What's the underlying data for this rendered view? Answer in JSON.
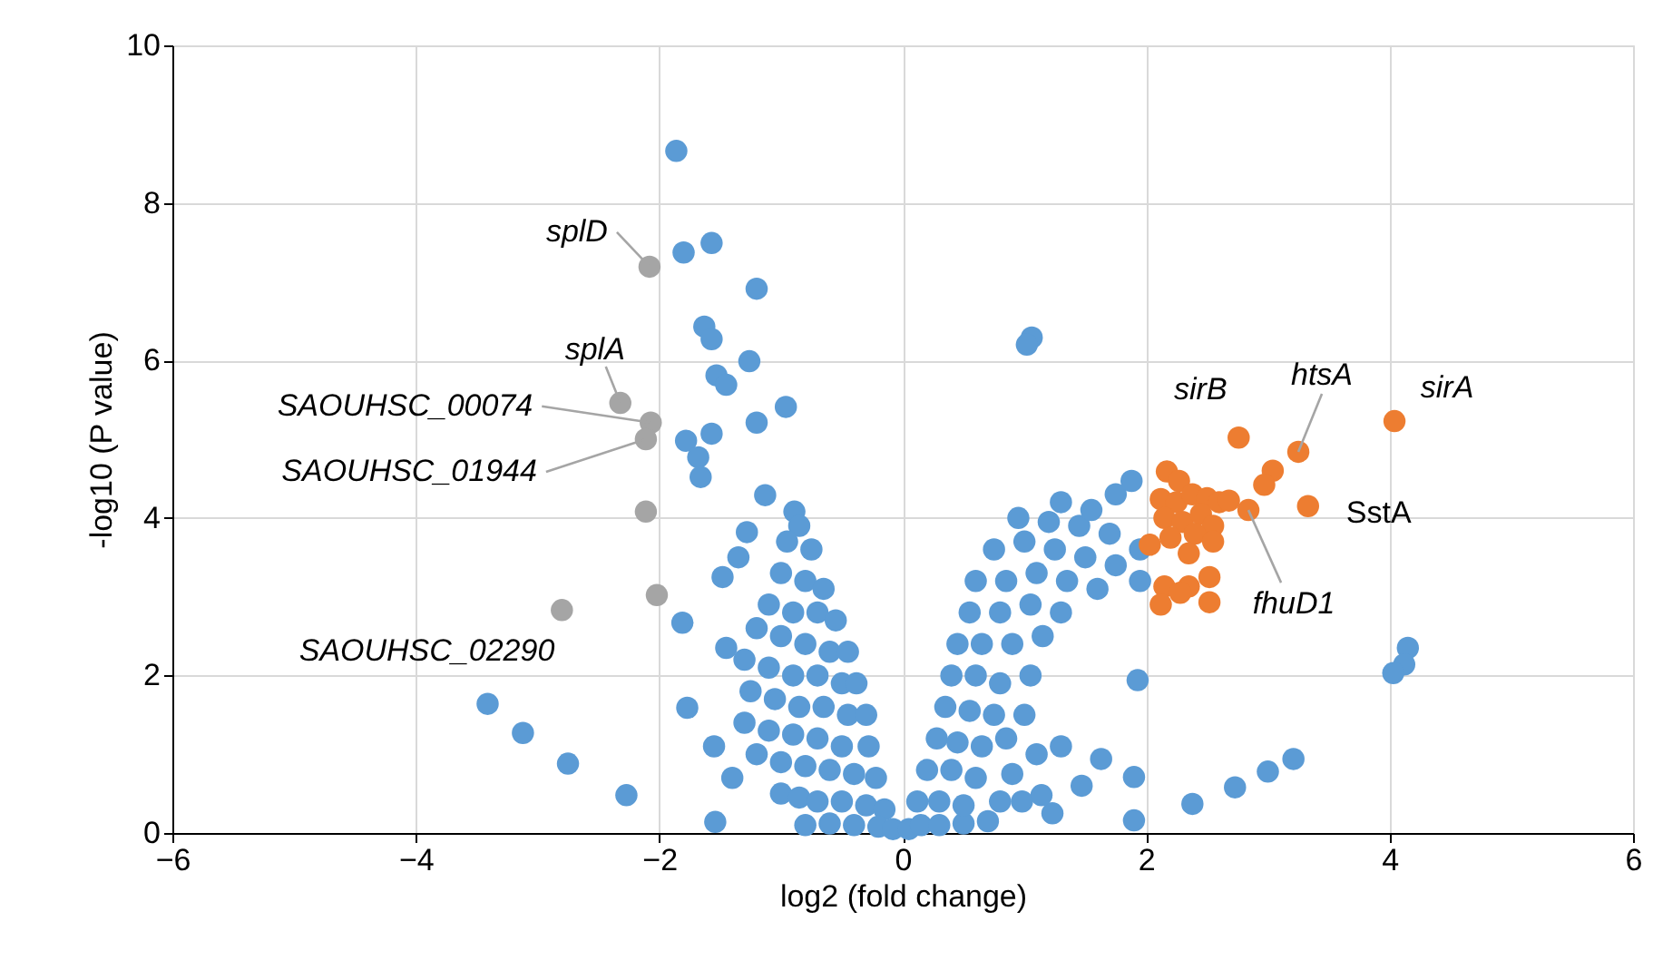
{
  "chart_data": {
    "type": "scatter",
    "xlabel": "log2 (fold change)",
    "ylabel": "-log10 (P value)",
    "xlim": [
      -6,
      6
    ],
    "xticks": [
      -6,
      -4,
      -2,
      0,
      2,
      4,
      6
    ],
    "ylim": [
      0,
      10
    ],
    "yticks": [
      0,
      2,
      4,
      6,
      8,
      10
    ],
    "grid": true,
    "marker": "circle",
    "series": [
      {
        "color": "#5b9bd5",
        "x": [
          -1.86,
          -1.8,
          -1.57,
          -1.2,
          -1.63,
          -1.57,
          -1.26,
          -1.53,
          -1.45,
          -0.96,
          -1.2,
          -1.57,
          -1.78,
          -1.68,
          -1.66,
          -1.13,
          -0.89,
          -1.28,
          -1.35,
          -1.48,
          -1.81,
          -1.45,
          -1.77,
          -3.41,
          -3.12,
          -2.75,
          -2.27,
          -1.54,
          -0.85,
          -0.95,
          -0.75,
          -1.0,
          -0.8,
          -0.65,
          -1.1,
          -0.9,
          -0.7,
          -0.55,
          -1.2,
          -1.0,
          -0.8,
          -0.6,
          -0.45,
          -1.3,
          -1.1,
          -0.9,
          -0.7,
          -0.5,
          -0.38,
          -1.25,
          -1.05,
          -0.85,
          -0.65,
          -0.45,
          -0.3,
          -1.3,
          -1.1,
          -0.9,
          -0.7,
          -0.5,
          -0.28,
          -1.2,
          -1.0,
          -0.8,
          -0.6,
          -0.4,
          -0.22,
          -1.0,
          -0.85,
          -0.7,
          -0.5,
          -0.3,
          -0.15,
          -0.8,
          -0.6,
          -0.4,
          -0.2,
          -0.08,
          -1.4,
          -1.55,
          0.05,
          0.15,
          0.3,
          0.5,
          0.7,
          0.12,
          0.3,
          0.5,
          0.8,
          0.2,
          0.4,
          0.6,
          0.9,
          0.28,
          0.45,
          0.65,
          0.85,
          0.35,
          0.55,
          0.75,
          1.0,
          0.4,
          0.6,
          0.8,
          1.05,
          0.45,
          0.65,
          0.9,
          1.15,
          0.55,
          0.8,
          1.05,
          1.3,
          0.6,
          0.85,
          1.1,
          1.35,
          1.6,
          0.75,
          1.0,
          1.25,
          1.5,
          1.75,
          0.95,
          1.2,
          1.45,
          1.7,
          1.95,
          1.3,
          1.55,
          1.75,
          1.88,
          1.95,
          1.06,
          1.02,
          4.15,
          4.12,
          4.03,
          3.21,
          3.0,
          2.73,
          2.38,
          1.9,
          1.9,
          1.93,
          1.47,
          1.63,
          1.23,
          1.14,
          0.98,
          1.1,
          1.3
        ],
        "values": [
          8.66,
          7.37,
          7.49,
          6.91,
          6.43,
          6.27,
          5.99,
          5.81,
          5.69,
          5.41,
          5.21,
          5.07,
          4.98,
          4.77,
          4.52,
          4.29,
          4.08,
          3.82,
          3.5,
          3.25,
          2.67,
          2.35,
          1.59,
          1.64,
          1.27,
          0.88,
          0.48,
          0.14,
          3.9,
          3.7,
          3.6,
          3.3,
          3.2,
          3.1,
          2.9,
          2.8,
          2.8,
          2.7,
          2.6,
          2.5,
          2.4,
          2.3,
          2.3,
          2.2,
          2.1,
          2.0,
          2.0,
          1.9,
          1.9,
          1.8,
          1.7,
          1.6,
          1.6,
          1.5,
          1.5,
          1.4,
          1.3,
          1.25,
          1.2,
          1.1,
          1.1,
          1.0,
          0.9,
          0.85,
          0.8,
          0.75,
          0.7,
          0.5,
          0.45,
          0.4,
          0.4,
          0.35,
          0.3,
          0.1,
          0.12,
          0.1,
          0.08,
          0.05,
          0.7,
          1.1,
          0.05,
          0.1,
          0.1,
          0.12,
          0.15,
          0.4,
          0.4,
          0.35,
          0.4,
          0.8,
          0.8,
          0.7,
          0.75,
          1.2,
          1.15,
          1.1,
          1.2,
          1.6,
          1.55,
          1.5,
          1.5,
          2.0,
          2.0,
          1.9,
          2.0,
          2.4,
          2.4,
          2.4,
          2.5,
          2.8,
          2.8,
          2.9,
          2.8,
          3.2,
          3.2,
          3.3,
          3.2,
          3.1,
          3.6,
          3.7,
          3.6,
          3.5,
          3.4,
          4.0,
          3.95,
          3.9,
          3.8,
          3.6,
          4.2,
          4.1,
          4.3,
          4.47,
          3.2,
          6.29,
          6.2,
          2.35,
          2.14,
          2.03,
          0.94,
          0.78,
          0.58,
          0.37,
          0.71,
          0.16,
          1.94,
          0.6,
          0.94,
          0.25,
          0.48,
          0.4,
          1.0,
          1.1
        ]
      },
      {
        "color": "#ed7d31",
        "x": [
          4.04,
          2.76,
          3.25,
          3.04,
          2.97,
          3.33,
          2.84,
          2.17,
          2.27,
          2.12,
          2.25,
          2.38,
          2.5,
          2.6,
          2.68,
          2.15,
          2.3,
          2.45,
          2.55,
          2.4,
          2.2,
          2.55,
          2.03,
          2.35,
          2.15,
          2.35,
          2.52,
          2.12,
          2.52,
          2.28
        ],
        "values": [
          5.23,
          5.02,
          4.84,
          4.6,
          4.42,
          4.15,
          4.1,
          4.59,
          4.47,
          4.24,
          4.2,
          4.3,
          4.25,
          4.2,
          4.22,
          4.0,
          3.95,
          4.05,
          3.9,
          3.8,
          3.75,
          3.7,
          3.66,
          3.55,
          3.13,
          3.13,
          3.25,
          2.9,
          2.93,
          3.05
        ]
      },
      {
        "color": "#a5a5a5",
        "x": [
          -2.08,
          -2.32,
          -2.07,
          -2.11,
          -2.11,
          -2.02,
          -2.8
        ],
        "values": [
          7.19,
          5.46,
          5.21,
          5.0,
          4.08,
          3.02,
          2.83
        ]
      }
    ],
    "annotations": [
      {
        "text": "splD",
        "x": -2.08,
        "y": 7.19
      },
      {
        "text": "splA",
        "x": -2.32,
        "y": 5.46
      },
      {
        "text": "SAOUHSC_00074",
        "x": -2.07,
        "y": 5.21
      },
      {
        "text": "SAOUHSC_01944",
        "x": -2.11,
        "y": 5.0
      },
      {
        "text": "SAOUHSC_02290",
        "x": -2.8,
        "y": 2.83
      },
      {
        "text": "sirB",
        "x": 2.76,
        "y": 5.02
      },
      {
        "text": "htsA",
        "x": 3.25,
        "y": 4.84
      },
      {
        "text": "sirA",
        "x": 4.04,
        "y": 5.23
      },
      {
        "text": "SstA",
        "x": 3.33,
        "y": 4.15
      },
      {
        "text": "fhuD1",
        "x": 2.84,
        "y": 4.1
      }
    ]
  }
}
